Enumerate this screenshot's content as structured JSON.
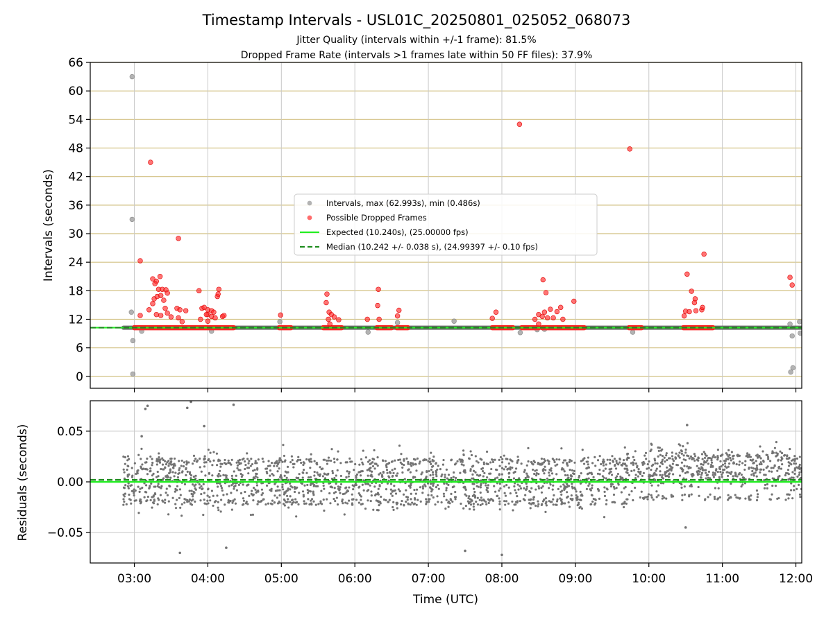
{
  "chart_data": [
    {
      "type": "scatter",
      "panel": "top",
      "title": "Timestamp Intervals - USL01C_20250801_025052_068073",
      "subtitle_lines": [
        "Jitter Quality (intervals within +/-1 frame): 81.5%",
        "Dropped Frame Rate (intervals >1 frames late within 50 FF files): 37.9%"
      ],
      "ylabel": "Intervals (seconds)",
      "ylim": [
        -2.5,
        66
      ],
      "yticks": [
        0,
        6,
        12,
        18,
        24,
        30,
        36,
        42,
        48,
        54,
        60,
        66
      ],
      "ytick_labels": [
        "0",
        "6",
        "12",
        "18",
        "24",
        "30",
        "36",
        "42",
        "48",
        "54",
        "60",
        "66"
      ],
      "xlim_hours": [
        2.4,
        12.08
      ],
      "horizontal_grid_color": "#d2c182",
      "vertical_grid_color": "#c8c8c8",
      "legend_position": "center",
      "legend": [
        {
          "label": "Intervals, max (62.993s), min (0.486s)",
          "marker": "dot",
          "color": "#999999"
        },
        {
          "label": "Possible Dropped Frames",
          "marker": "dot",
          "color": "#ff3b3b"
        },
        {
          "label": "Expected (10.240s), (25.00000 fps)",
          "marker": "line",
          "color": "#22ee22"
        },
        {
          "label": "Median (10.242 +/- 0.038 s), (24.99397 +/- 0.10 fps)",
          "marker": "dashed",
          "color": "#1e8c1e"
        }
      ],
      "expected_line": 10.24,
      "median_line": 10.242,
      "intervals_band": {
        "x_range": [
          2.85,
          12.08
        ],
        "y": 10.24
      },
      "intervals_outliers": [
        {
          "x": 2.97,
          "y": 63.0
        },
        {
          "x": 2.97,
          "y": 33.0
        },
        {
          "x": 2.96,
          "y": 13.5
        },
        {
          "x": 2.98,
          "y": 7.5
        },
        {
          "x": 2.98,
          "y": 0.5
        },
        {
          "x": 3.1,
          "y": 9.5
        },
        {
          "x": 4.05,
          "y": 9.5
        },
        {
          "x": 4.98,
          "y": 11.5
        },
        {
          "x": 6.18,
          "y": 9.3
        },
        {
          "x": 6.58,
          "y": 11.3
        },
        {
          "x": 7.35,
          "y": 11.6
        },
        {
          "x": 8.25,
          "y": 9.2
        },
        {
          "x": 8.48,
          "y": 9.8
        },
        {
          "x": 8.58,
          "y": 9.9
        },
        {
          "x": 9.78,
          "y": 9.3
        },
        {
          "x": 11.92,
          "y": 11.0
        },
        {
          "x": 11.95,
          "y": 8.5
        },
        {
          "x": 11.96,
          "y": 1.8
        },
        {
          "x": 11.93,
          "y": 0.9
        },
        {
          "x": 12.05,
          "y": 11.5
        },
        {
          "x": 12.06,
          "y": 9.1
        }
      ],
      "dropped_bands": [
        {
          "x_start": 3.0,
          "x_end": 4.35,
          "y": 10.24
        },
        {
          "x_start": 4.97,
          "x_end": 5.13,
          "y": 10.24
        },
        {
          "x_start": 5.57,
          "x_end": 5.82,
          "y": 10.24
        },
        {
          "x_start": 6.3,
          "x_end": 6.5,
          "y": 10.24
        },
        {
          "x_start": 6.57,
          "x_end": 6.72,
          "y": 10.24
        },
        {
          "x_start": 7.87,
          "x_end": 8.15,
          "y": 10.24
        },
        {
          "x_start": 8.27,
          "x_end": 8.5,
          "y": 10.24
        },
        {
          "x_start": 8.55,
          "x_end": 9.12,
          "y": 10.24
        },
        {
          "x_start": 9.73,
          "x_end": 9.9,
          "y": 10.24
        },
        {
          "x_start": 10.47,
          "x_end": 10.87,
          "y": 10.24
        }
      ],
      "dropped_points": [
        {
          "x": 3.08,
          "y": 24.3
        },
        {
          "x": 3.22,
          "y": 45.0
        },
        {
          "x": 3.6,
          "y": 29.0
        },
        {
          "x": 3.25,
          "y": 20.5
        },
        {
          "x": 3.3,
          "y": 20.0
        },
        {
          "x": 3.35,
          "y": 21.0
        },
        {
          "x": 3.28,
          "y": 19.5
        },
        {
          "x": 3.33,
          "y": 18.3
        },
        {
          "x": 3.38,
          "y": 18.3
        },
        {
          "x": 3.43,
          "y": 18.2
        },
        {
          "x": 3.45,
          "y": 17.5
        },
        {
          "x": 3.27,
          "y": 16.3
        },
        {
          "x": 3.31,
          "y": 16.8
        },
        {
          "x": 3.36,
          "y": 17.0
        },
        {
          "x": 3.25,
          "y": 15.3
        },
        {
          "x": 3.4,
          "y": 16.0
        },
        {
          "x": 3.58,
          "y": 14.3
        },
        {
          "x": 3.62,
          "y": 14.0
        },
        {
          "x": 3.7,
          "y": 13.8
        },
        {
          "x": 3.42,
          "y": 14.3
        },
        {
          "x": 3.2,
          "y": 14.0
        },
        {
          "x": 3.08,
          "y": 12.8
        },
        {
          "x": 3.3,
          "y": 13.0
        },
        {
          "x": 3.36,
          "y": 12.8
        },
        {
          "x": 3.45,
          "y": 13.3
        },
        {
          "x": 3.5,
          "y": 12.5
        },
        {
          "x": 3.6,
          "y": 12.3
        },
        {
          "x": 3.65,
          "y": 11.5
        },
        {
          "x": 3.88,
          "y": 18.0
        },
        {
          "x": 3.92,
          "y": 14.3
        },
        {
          "x": 3.95,
          "y": 14.5
        },
        {
          "x": 4.0,
          "y": 14.0
        },
        {
          "x": 4.05,
          "y": 13.8
        },
        {
          "x": 4.08,
          "y": 13.5
        },
        {
          "x": 4.15,
          "y": 18.3
        },
        {
          "x": 4.13,
          "y": 16.8
        },
        {
          "x": 4.14,
          "y": 17.3
        },
        {
          "x": 4.0,
          "y": 13.0
        },
        {
          "x": 4.05,
          "y": 12.6
        },
        {
          "x": 4.1,
          "y": 12.3
        },
        {
          "x": 4.2,
          "y": 12.6
        },
        {
          "x": 4.22,
          "y": 12.8
        },
        {
          "x": 3.9,
          "y": 12.0
        },
        {
          "x": 4.0,
          "y": 11.6
        },
        {
          "x": 3.98,
          "y": 13.0
        },
        {
          "x": 4.99,
          "y": 12.9
        },
        {
          "x": 5.62,
          "y": 17.3
        },
        {
          "x": 5.61,
          "y": 15.5
        },
        {
          "x": 5.65,
          "y": 13.5
        },
        {
          "x": 5.68,
          "y": 13.0
        },
        {
          "x": 5.64,
          "y": 12.0
        },
        {
          "x": 5.66,
          "y": 11.0
        },
        {
          "x": 5.72,
          "y": 12.5
        },
        {
          "x": 5.78,
          "y": 11.9
        },
        {
          "x": 6.17,
          "y": 12.0
        },
        {
          "x": 6.32,
          "y": 18.3
        },
        {
          "x": 6.31,
          "y": 14.9
        },
        {
          "x": 6.33,
          "y": 12.0
        },
        {
          "x": 6.58,
          "y": 12.7
        },
        {
          "x": 6.6,
          "y": 13.9
        },
        {
          "x": 7.87,
          "y": 12.2
        },
        {
          "x": 7.92,
          "y": 13.5
        },
        {
          "x": 8.24,
          "y": 53.0
        },
        {
          "x": 8.56,
          "y": 20.3
        },
        {
          "x": 8.6,
          "y": 17.6
        },
        {
          "x": 8.45,
          "y": 12.0
        },
        {
          "x": 8.5,
          "y": 13.0
        },
        {
          "x": 8.55,
          "y": 12.6
        },
        {
          "x": 8.58,
          "y": 13.5
        },
        {
          "x": 8.62,
          "y": 12.3
        },
        {
          "x": 8.66,
          "y": 14.1
        },
        {
          "x": 8.7,
          "y": 12.3
        },
        {
          "x": 8.75,
          "y": 13.6
        },
        {
          "x": 8.8,
          "y": 14.5
        },
        {
          "x": 8.83,
          "y": 12.0
        },
        {
          "x": 8.5,
          "y": 11.0
        },
        {
          "x": 8.98,
          "y": 15.8
        },
        {
          "x": 9.74,
          "y": 47.8
        },
        {
          "x": 10.52,
          "y": 21.5
        },
        {
          "x": 10.58,
          "y": 17.9
        },
        {
          "x": 10.63,
          "y": 16.3
        },
        {
          "x": 10.62,
          "y": 15.5
        },
        {
          "x": 10.5,
          "y": 13.7
        },
        {
          "x": 10.55,
          "y": 13.6
        },
        {
          "x": 10.48,
          "y": 12.7
        },
        {
          "x": 10.64,
          "y": 13.8
        },
        {
          "x": 10.72,
          "y": 14.0
        },
        {
          "x": 10.73,
          "y": 14.5
        },
        {
          "x": 10.75,
          "y": 25.7
        },
        {
          "x": 11.92,
          "y": 20.8
        },
        {
          "x": 11.95,
          "y": 19.2
        }
      ]
    },
    {
      "type": "scatter",
      "panel": "bottom",
      "ylabel": "Residuals (seconds)",
      "xlabel": "Time (UTC)",
      "ylim": [
        -0.08,
        0.08
      ],
      "yticks": [
        -0.05,
        0.0,
        0.05
      ],
      "ytick_labels": [
        "−0.05",
        "0.00",
        "0.05"
      ],
      "xlim_hours": [
        2.4,
        12.08
      ],
      "xticks_hours": [
        3,
        4,
        5,
        6,
        7,
        8,
        9,
        10,
        11,
        12
      ],
      "xtick_labels": [
        "03:00",
        "04:00",
        "05:00",
        "06:00",
        "07:00",
        "08:00",
        "09:00",
        "10:00",
        "11:00",
        "12:00"
      ],
      "expected_residual": 0.0,
      "median_residual": 0.002,
      "residual_color": "#737373",
      "residual_generation": {
        "x_range": [
          2.85,
          12.08
        ],
        "count": 2400,
        "segments": [
          {
            "x_start": 2.85,
            "x_end": 9.7,
            "center": 0.0,
            "spread": 0.024
          },
          {
            "x_start": 9.7,
            "x_end": 12.08,
            "center": 0.012,
            "spread": 0.02
          }
        ]
      },
      "residual_outliers": [
        {
          "x": 3.15,
          "y": 0.072
        },
        {
          "x": 3.18,
          "y": 0.075
        },
        {
          "x": 3.72,
          "y": 0.073
        },
        {
          "x": 3.77,
          "y": 0.079
        },
        {
          "x": 4.35,
          "y": 0.076
        },
        {
          "x": 3.95,
          "y": 0.055
        },
        {
          "x": 3.1,
          "y": 0.045
        },
        {
          "x": 10.52,
          "y": 0.056
        },
        {
          "x": 3.62,
          "y": -0.07
        },
        {
          "x": 8.0,
          "y": -0.072
        },
        {
          "x": 7.5,
          "y": -0.068
        },
        {
          "x": 4.25,
          "y": -0.065
        },
        {
          "x": 10.5,
          "y": -0.045
        }
      ]
    }
  ]
}
